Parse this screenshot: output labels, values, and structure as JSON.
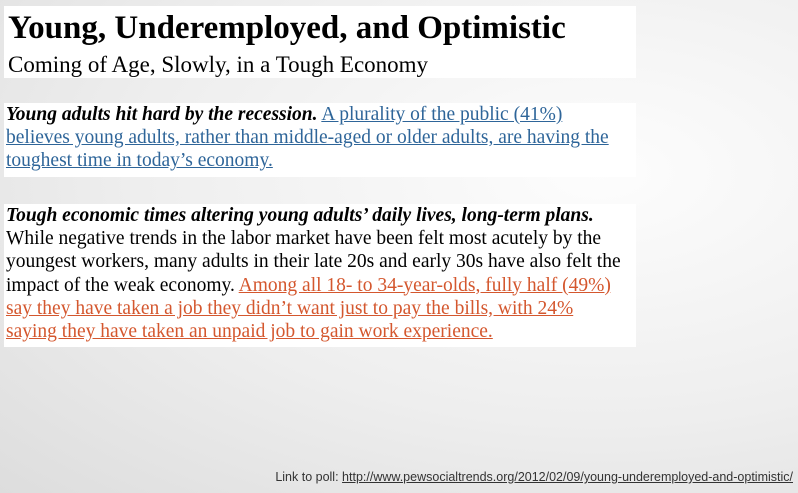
{
  "slide": {
    "title": "Young, Underemployed, and Optimistic",
    "subtitle": "Coming of Age, Slowly, in a Tough Economy",
    "section1": {
      "lead": "Young adults hit hard by the recession.",
      "link_line1": "A plurality of the public (41%)",
      "link_line2": "believes young adults, rather than middle-aged or older adults, are having the",
      "link_line3": "toughest time in today’s economy."
    },
    "section2": {
      "lead": "Tough economic times altering young adults’ daily lives, long-term plans.",
      "body_line1": "While negative trends in the labor market have been felt most acutely by the",
      "body_line2": "youngest workers, many adults in their late 20s and early 30s have also felt the",
      "body_line3": "impact of the weak economy.",
      "link_line1": "Among all 18- to 34-year-olds, fully half (49%)",
      "link_line2": "say they have taken a job they didn’t want just to pay the bills, with 24%",
      "link_line3": "saying they have taken an unpaid job to gain work experience."
    },
    "footer": {
      "label": "Link to poll:",
      "url": "http://www.pewsocialtrends.org/2012/02/09/young-underemployed-and-optimistic/"
    }
  },
  "colors": {
    "link_blue": "#2e6599",
    "link_orange": "#d4572e"
  }
}
